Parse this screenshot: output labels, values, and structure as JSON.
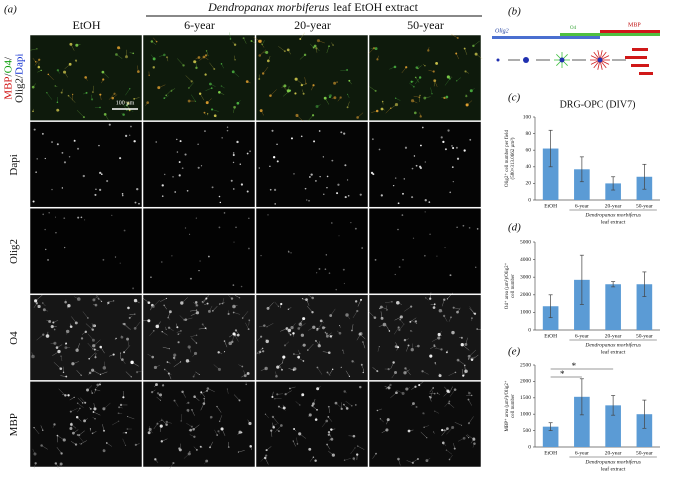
{
  "panel_a": {
    "label": "(a)",
    "header": {
      "italic": "Dendropanax morbiferus",
      "rest": "leaf EtOH extract"
    },
    "columns": [
      "EtOH",
      "6-year",
      "20-year",
      "50-year"
    ],
    "rows": [
      {
        "lines": [
          [
            {
              "text": "MBP",
              "color": "#d01010"
            },
            {
              "text": "/",
              "color": "#111111"
            },
            {
              "text": "O4",
              "color": "#10a010"
            },
            {
              "text": "/",
              "color": "#111111"
            }
          ],
          [
            {
              "text": "Olig2/",
              "color": "#111111"
            },
            {
              "text": "Dapi",
              "color": "#1030d0"
            }
          ]
        ]
      },
      {
        "lines": [
          [
            {
              "text": "Dapi",
              "color": "#111111"
            }
          ]
        ]
      },
      {
        "lines": [
          [
            {
              "text": "Olig2",
              "color": "#111111"
            }
          ]
        ]
      },
      {
        "lines": [
          [
            {
              "text": "O4",
              "color": "#111111"
            }
          ]
        ]
      },
      {
        "lines": [
          [
            {
              "text": "MBP",
              "color": "#111111"
            }
          ]
        ]
      }
    ],
    "scale_bar": "100 µm"
  },
  "panel_b": {
    "label": "(b)",
    "olig2": "Olig2",
    "o4": "O4",
    "mbp": "MBP"
  },
  "chart_data": [
    {
      "type": "bar",
      "panel": "(c)",
      "title": "DRG-OPC (DIV7)",
      "ylabel": [
        "Olig2⁺ cell number per field",
        "(580×313.0662 µm²)"
      ],
      "categories": [
        "EtOH",
        "6-year",
        "20-year",
        "50-year"
      ],
      "group_label": [
        "Dendropanax morbiferus",
        "leaf extract"
      ],
      "series": [
        {
          "color": "#5b9bd5",
          "values": [
            62,
            37,
            20,
            28
          ],
          "errors": [
            22,
            15,
            8,
            15
          ]
        }
      ],
      "ylim": [
        0,
        100
      ],
      "yticks": [
        0,
        20,
        40,
        60,
        80,
        100
      ]
    },
    {
      "type": "bar",
      "panel": "(d)",
      "ylabel": [
        "O4⁺ area (µm²)/Olig2⁺",
        "cell number"
      ],
      "categories": [
        "EtOH",
        "6-year",
        "20-year",
        "50-year"
      ],
      "group_label": [
        "Dendropanax morbiferus",
        "leaf extract"
      ],
      "series": [
        {
          "color": "#5b9bd5",
          "values": [
            1350,
            2850,
            2600,
            2600
          ],
          "errors": [
            650,
            1400,
            150,
            700
          ]
        }
      ],
      "ylim": [
        0,
        5000
      ],
      "yticks": [
        0,
        1000,
        2000,
        3000,
        4000,
        5000
      ]
    },
    {
      "type": "bar",
      "panel": "(e)",
      "ylabel": [
        "MBP⁺ area (µm²)/Olig2⁺",
        "cell number"
      ],
      "categories": [
        "EtOH",
        "6-year",
        "20-year",
        "50-year"
      ],
      "group_label": [
        "Dendropanax morbiferus",
        "leaf extract"
      ],
      "series": [
        {
          "color": "#5b9bd5",
          "values": [
            620,
            1530,
            1270,
            1000
          ],
          "errors": [
            120,
            550,
            300,
            430
          ]
        }
      ],
      "ylim": [
        0,
        2500
      ],
      "yticks": [
        0,
        500,
        1000,
        1500,
        2000,
        2500
      ],
      "annotations": [
        "*",
        "*"
      ]
    }
  ]
}
